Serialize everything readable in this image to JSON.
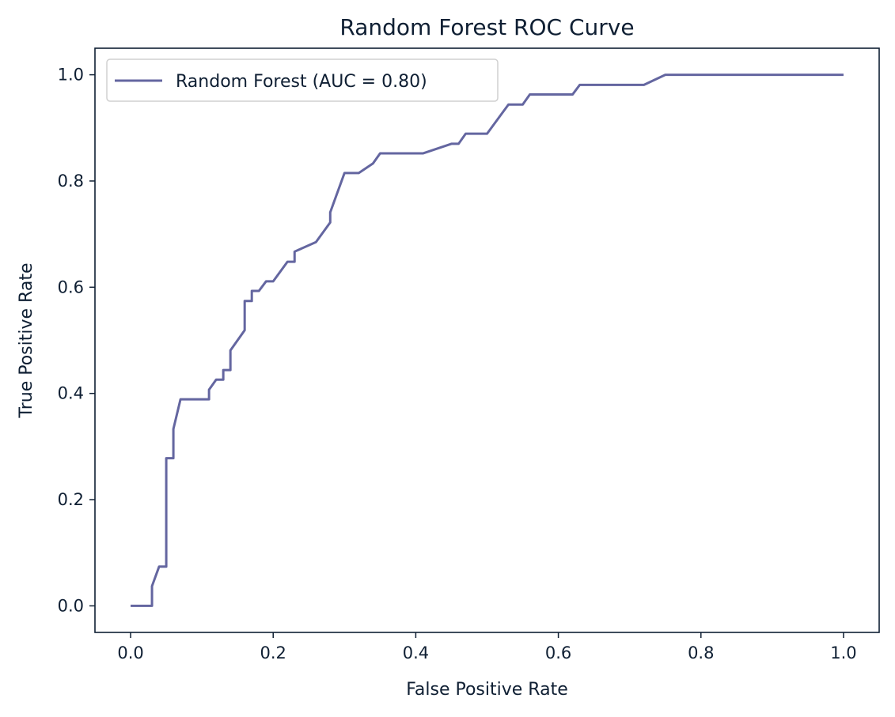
{
  "colors": {
    "line": "#6466a0",
    "axis": "#0f1f33",
    "background": "#ffffff",
    "legend_border": "#d0d0d0"
  },
  "chart_data": {
    "type": "line",
    "title": "Random Forest ROC Curve",
    "xlabel": "False Positive Rate",
    "ylabel": "True Positive Rate",
    "xlim": [
      -0.05,
      1.05
    ],
    "ylim": [
      -0.05,
      1.05
    ],
    "xticks": [
      0.0,
      0.2,
      0.4,
      0.6,
      0.8,
      1.0
    ],
    "yticks": [
      0.0,
      0.2,
      0.4,
      0.6,
      0.8,
      1.0
    ],
    "xtick_labels": [
      "0.0",
      "0.2",
      "0.4",
      "0.6",
      "0.8",
      "1.0"
    ],
    "ytick_labels": [
      "0.0",
      "0.2",
      "0.4",
      "0.6",
      "0.8",
      "1.0"
    ],
    "grid": false,
    "legend_position": "top-left",
    "series": [
      {
        "name": "Random Forest (AUC = 0.80)",
        "x": [
          0.0,
          0.03,
          0.03,
          0.04,
          0.05,
          0.05,
          0.06,
          0.06,
          0.07,
          0.11,
          0.11,
          0.12,
          0.13,
          0.13,
          0.14,
          0.14,
          0.16,
          0.16,
          0.17,
          0.17,
          0.18,
          0.19,
          0.2,
          0.22,
          0.23,
          0.23,
          0.26,
          0.28,
          0.28,
          0.3,
          0.32,
          0.34,
          0.35,
          0.41,
          0.45,
          0.46,
          0.47,
          0.5,
          0.53,
          0.55,
          0.56,
          0.62,
          0.63,
          0.72,
          0.75,
          0.8,
          1.0
        ],
        "y": [
          0.0,
          0.0,
          0.037,
          0.074,
          0.074,
          0.278,
          0.278,
          0.333,
          0.389,
          0.389,
          0.407,
          0.426,
          0.426,
          0.444,
          0.444,
          0.481,
          0.519,
          0.574,
          0.574,
          0.593,
          0.593,
          0.611,
          0.611,
          0.648,
          0.648,
          0.667,
          0.685,
          0.722,
          0.741,
          0.815,
          0.815,
          0.833,
          0.852,
          0.852,
          0.87,
          0.87,
          0.889,
          0.889,
          0.944,
          0.944,
          0.963,
          0.963,
          0.981,
          0.981,
          1.0,
          1.0,
          1.0
        ]
      }
    ]
  }
}
